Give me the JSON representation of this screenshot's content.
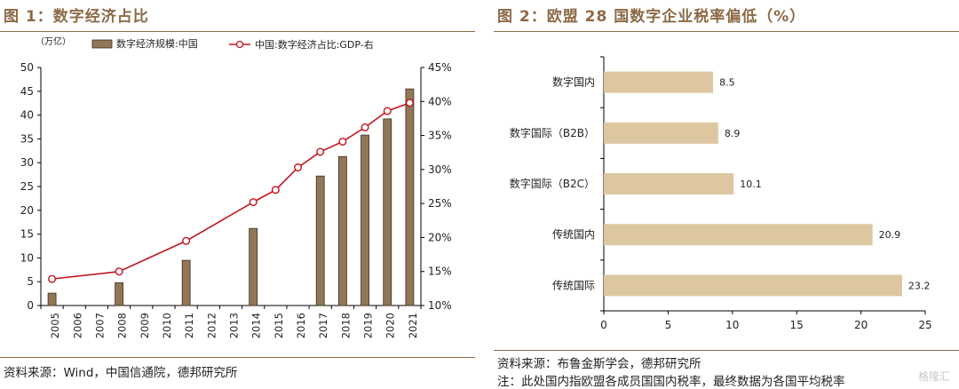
{
  "chart_data": [
    {
      "type": "bar+line",
      "title": "图 1：数字经济占比",
      "unit_label": "（万亿）",
      "categories": [
        "2005",
        "2006",
        "2007",
        "2008",
        "2009",
        "2010",
        "2011",
        "2012",
        "2013",
        "2014",
        "2015",
        "2016",
        "2017",
        "2018",
        "2019",
        "2020",
        "2021"
      ],
      "series": [
        {
          "name": "数字经济规模:中国",
          "kind": "bar",
          "axis": "left",
          "values": [
            2.6,
            null,
            null,
            4.8,
            null,
            null,
            9.5,
            null,
            null,
            16.2,
            null,
            null,
            27.2,
            31.3,
            35.8,
            39.2,
            45.5
          ]
        },
        {
          "name": "中国:数字经济占比:GDP-右",
          "kind": "line",
          "axis": "right",
          "values": [
            0.139,
            null,
            null,
            0.15,
            null,
            null,
            0.195,
            null,
            null,
            0.252,
            0.27,
            0.303,
            0.326,
            0.341,
            0.362,
            0.386,
            0.398
          ]
        }
      ],
      "ylim_left": [
        0,
        50
      ],
      "yticks_left": [
        "50",
        "45",
        "40",
        "35",
        "30",
        "25",
        "20",
        "15",
        "10",
        "5",
        "0"
      ],
      "ylim_right": [
        0.1,
        0.45
      ],
      "yticks_right": [
        "45%",
        "40%",
        "35%",
        "30%",
        "25%",
        "20%",
        "15%",
        "10%"
      ],
      "legend_position": "top",
      "colors": {
        "bar": "#917758",
        "bar_edge": "#3b2f20",
        "line": "#c0141c",
        "marker_fill": "#ffffff"
      },
      "source": "资料来源：Wind，中国信通院，德邦研究所"
    },
    {
      "type": "bar",
      "orientation": "horizontal",
      "title": "图 2：欧盟 28 国数字企业税率偏低（%）",
      "categories": [
        "数字国内",
        "数字国际（B2B）",
        "数字国际（B2C）",
        "传统国内",
        "传统国际"
      ],
      "values": [
        8.5,
        8.9,
        10.1,
        20.9,
        23.2
      ],
      "data_labels": [
        "8.5",
        "8.9",
        "10.1",
        "20.9",
        "23.2"
      ],
      "xlim": [
        0,
        25
      ],
      "xticks": [
        "0",
        "5",
        "10",
        "15",
        "20",
        "25"
      ],
      "colors": {
        "bar": "#dcc7a1"
      },
      "source": "资料来源：布鲁金斯学会，德邦研究所",
      "note": "注：此处国内指欧盟各成员国国内税率，最终数据为各国平均税率"
    }
  ],
  "watermark": "格隆汇"
}
